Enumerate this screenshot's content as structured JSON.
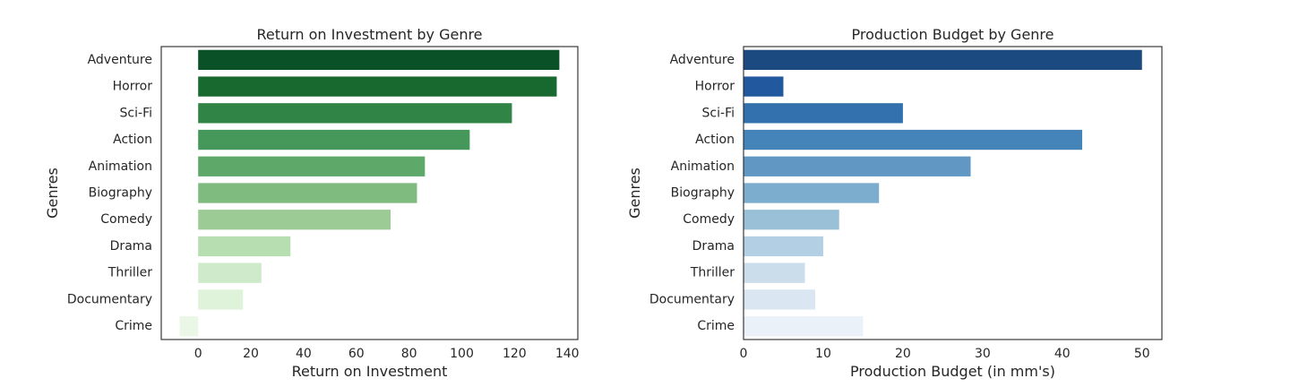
{
  "chart_data": [
    {
      "type": "bar",
      "orientation": "horizontal",
      "title": "Return on Investment by Genre",
      "xlabel": "Return on Investment",
      "ylabel": "Genres",
      "categories": [
        "Adventure",
        "Horror",
        "Sci-Fi",
        "Action",
        "Animation",
        "Biography",
        "Comedy",
        "Drama",
        "Thriller",
        "Documentary",
        "Crime"
      ],
      "values": [
        137,
        136,
        119,
        103,
        86,
        83,
        73,
        35,
        24,
        17,
        -7
      ],
      "xlim": [
        -14,
        144
      ],
      "xticks": [
        0,
        20,
        40,
        60,
        80,
        100,
        120,
        140
      ],
      "colors": [
        "#0b5127",
        "#17692f",
        "#2f8446",
        "#45975a",
        "#5ea96a",
        "#7fbb7e",
        "#9ccb95",
        "#b6deb0",
        "#cfe9cb",
        "#dff2da",
        "#eaf7e6"
      ],
      "grid": false
    },
    {
      "type": "bar",
      "orientation": "horizontal",
      "title": "Production Budget by Genre",
      "xlabel": "Production Budget (in mm's)",
      "ylabel": "Genres",
      "categories": [
        "Adventure",
        "Horror",
        "Sci-Fi",
        "Action",
        "Animation",
        "Biography",
        "Comedy",
        "Drama",
        "Thriller",
        "Documentary",
        "Crime"
      ],
      "values": [
        50,
        5,
        20,
        42.5,
        28.5,
        17,
        12,
        10,
        7.7,
        9,
        15
      ],
      "xlim": [
        0,
        52.5
      ],
      "xticks": [
        0,
        10,
        20,
        30,
        40,
        50
      ],
      "colors": [
        "#1a4a80",
        "#22599e",
        "#3271ad",
        "#4484b9",
        "#6097c3",
        "#7cacce",
        "#9ac0d8",
        "#b3cfe3",
        "#cbdcea",
        "#dae7f2",
        "#eaf1f8"
      ],
      "grid": false
    }
  ]
}
